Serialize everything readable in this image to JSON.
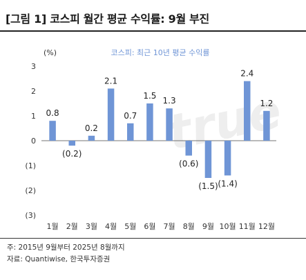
{
  "title": "[그림 1] 코스피 월간 평균 수익률: 9월 부진",
  "footnotes": {
    "note": "주: 2015년 9월부터 2025년 8월까지",
    "source": "자료: Quantiwise, 한국투자증권"
  },
  "watermark": "true",
  "chart_data": {
    "type": "bar",
    "title": "",
    "legend": "코스피: 최근 10년 평균 수익률",
    "unit_label": "(%)",
    "categories": [
      "1월",
      "2월",
      "3월",
      "4월",
      "5월",
      "6월",
      "7월",
      "8월",
      "9월",
      "10월",
      "11월",
      "12월"
    ],
    "values": [
      0.8,
      -0.2,
      0.2,
      2.1,
      0.7,
      1.5,
      1.3,
      -0.6,
      -1.5,
      -1.4,
      2.4,
      1.2
    ],
    "value_labels": [
      "0.8",
      "(0.2)",
      "0.2",
      "2.1",
      "0.7",
      "1.5",
      "1.3",
      "(0.6)",
      "(1.5)",
      "(1.4)",
      "2.4",
      "1.2"
    ],
    "yticks": [
      3,
      2,
      1,
      0,
      -1,
      -2,
      -3
    ],
    "ytick_labels": [
      "3",
      "2",
      "1",
      "0",
      "(1)",
      "(2)",
      "(3)"
    ],
    "ylim": [
      -3,
      3
    ],
    "bar_color": "#6f95d6",
    "grid": false
  }
}
